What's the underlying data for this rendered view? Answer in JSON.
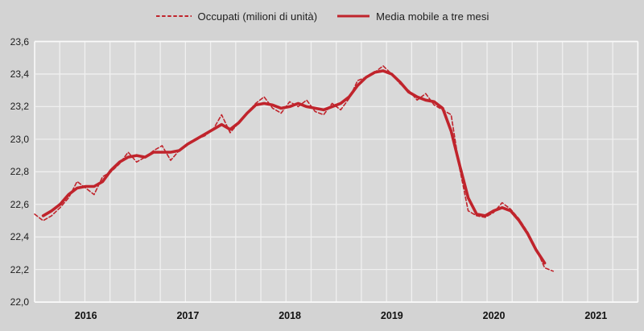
{
  "legend": {
    "items": [
      {
        "label": "Occupati (milioni di unità)",
        "style": "dashed",
        "sample_icon": "dashed-line-sample"
      },
      {
        "label": "Media mobile a tre mesi",
        "style": "solid",
        "sample_icon": "solid-line-sample"
      }
    ]
  },
  "colors": {
    "series_red": "#c0242c",
    "plot_background": "#d9d9d9",
    "page_background": "#d3d3d3",
    "gridline": "#f0f0f0",
    "plot_border": "#fafafa",
    "text": "#1d1d1d"
  },
  "chart_data": {
    "type": "line",
    "title": "",
    "xlabel": "",
    "ylabel": "",
    "unit": "milioni di unità",
    "ylim": [
      22.0,
      23.6
    ],
    "grid": "on (quarterly vertical, 0.2 horizontal)",
    "legend_position": "top-center",
    "y_ticks": {
      "values": [
        22.0,
        22.2,
        22.4,
        22.6,
        22.8,
        23.0,
        23.2,
        23.4,
        23.6
      ],
      "labels": [
        "22,0",
        "22,2",
        "22,4",
        "22,6",
        "22,8",
        "23,0",
        "23,2",
        "23,4",
        "23,6"
      ]
    },
    "x_year_labels": [
      "2016",
      "2017",
      "2018",
      "2019",
      "2020",
      "2021"
    ],
    "months": [
      "2016-01",
      "2016-02",
      "2016-03",
      "2016-04",
      "2016-05",
      "2016-06",
      "2016-07",
      "2016-08",
      "2016-09",
      "2016-10",
      "2016-11",
      "2016-12",
      "2017-01",
      "2017-02",
      "2017-03",
      "2017-04",
      "2017-05",
      "2017-06",
      "2017-07",
      "2017-08",
      "2017-09",
      "2017-10",
      "2017-11",
      "2017-12",
      "2018-01",
      "2018-02",
      "2018-03",
      "2018-04",
      "2018-05",
      "2018-06",
      "2018-07",
      "2018-08",
      "2018-09",
      "2018-10",
      "2018-11",
      "2018-12",
      "2019-01",
      "2019-02",
      "2019-03",
      "2019-04",
      "2019-05",
      "2019-06",
      "2019-07",
      "2019-08",
      "2019-09",
      "2019-10",
      "2019-11",
      "2019-12",
      "2020-01",
      "2020-02",
      "2020-03",
      "2020-04",
      "2020-05",
      "2020-06",
      "2020-07",
      "2020-08",
      "2020-09",
      "2020-10",
      "2020-11",
      "2020-12",
      "2021-01",
      "2021-02"
    ],
    "series": [
      {
        "name": "Occupati (milioni di unità)",
        "style": "dashed",
        "values": [
          22.54,
          22.5,
          22.53,
          22.58,
          22.64,
          22.74,
          22.7,
          22.66,
          22.77,
          22.8,
          22.85,
          22.92,
          22.86,
          22.89,
          22.93,
          22.96,
          22.87,
          22.93,
          22.97,
          23.0,
          23.02,
          23.06,
          23.15,
          23.04,
          23.1,
          23.16,
          23.22,
          23.26,
          23.19,
          23.16,
          23.23,
          23.2,
          23.24,
          23.17,
          23.15,
          23.22,
          23.18,
          23.25,
          23.36,
          23.38,
          23.41,
          23.45,
          23.4,
          23.34,
          23.3,
          23.24,
          23.28,
          23.21,
          23.18,
          23.15,
          22.82,
          22.56,
          22.53,
          22.52,
          22.55,
          22.61,
          22.57,
          22.51,
          22.43,
          22.33,
          22.21,
          22.19
        ]
      },
      {
        "name": "Media mobile a tre mesi",
        "style": "solid",
        "values": [
          null,
          22.53,
          22.56,
          22.6,
          22.66,
          22.7,
          22.71,
          22.71,
          22.74,
          22.81,
          22.86,
          22.89,
          22.9,
          22.89,
          22.92,
          22.92,
          22.92,
          22.93,
          22.97,
          23.0,
          23.03,
          23.06,
          23.09,
          23.06,
          23.1,
          23.16,
          23.21,
          23.22,
          23.21,
          23.19,
          23.2,
          23.22,
          23.2,
          23.19,
          23.18,
          23.2,
          23.22,
          23.26,
          23.33,
          23.38,
          23.41,
          23.42,
          23.4,
          23.35,
          23.29,
          23.26,
          23.24,
          23.23,
          23.19,
          23.05,
          22.84,
          22.64,
          22.54,
          22.53,
          22.56,
          22.58,
          22.56,
          22.5,
          22.42,
          22.32,
          22.24,
          null
        ]
      }
    ]
  }
}
